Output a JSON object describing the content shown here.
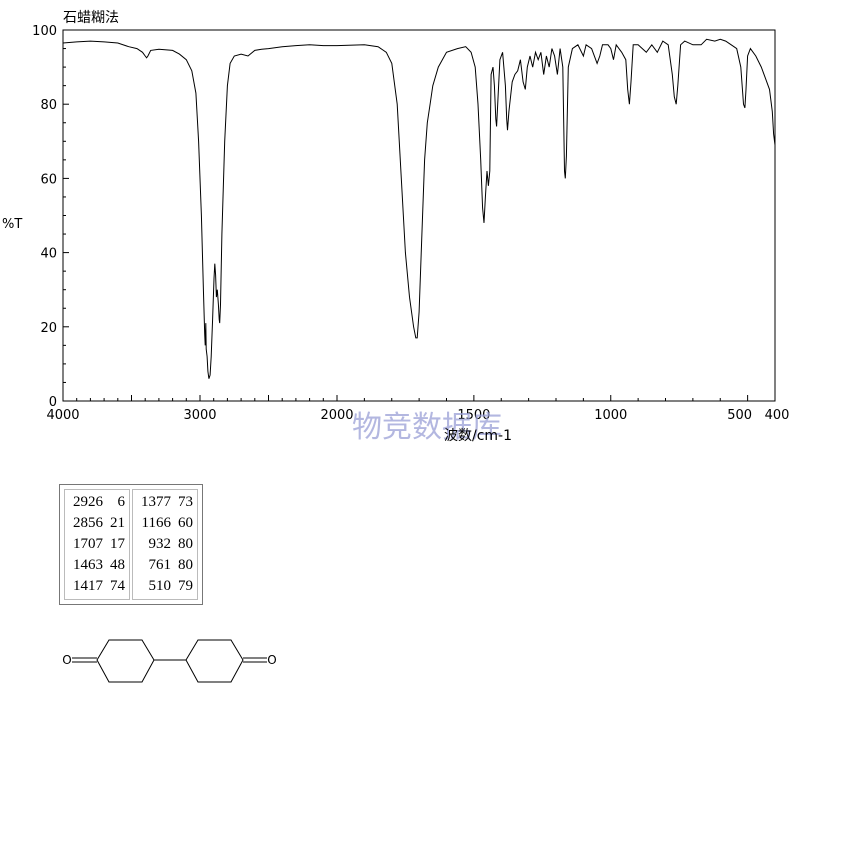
{
  "header": {
    "method_label": "石蜡糊法"
  },
  "watermark": "物竞数据库",
  "chart_data": {
    "type": "line",
    "title": "",
    "xlabel": "波数/cm-1",
    "ylabel": "%T",
    "xlim": [
      4000,
      400
    ],
    "ylim": [
      0,
      100
    ],
    "x_reversed": true,
    "x_ticks": [
      4000,
      3000,
      2000,
      1500,
      1000,
      500,
      400
    ],
    "y_ticks": [
      0,
      20,
      40,
      60,
      80,
      100
    ],
    "grid": false,
    "series": [
      {
        "points": [
          [
            4000,
            96.5
          ],
          [
            3900,
            96.8
          ],
          [
            3800,
            97
          ],
          [
            3700,
            96.8
          ],
          [
            3600,
            96.5
          ],
          [
            3520,
            95.5
          ],
          [
            3460,
            95
          ],
          [
            3420,
            94
          ],
          [
            3400,
            93
          ],
          [
            3390,
            92.5
          ],
          [
            3380,
            93
          ],
          [
            3360,
            94.5
          ],
          [
            3300,
            94.8
          ],
          [
            3200,
            94.5
          ],
          [
            3150,
            93.5
          ],
          [
            3100,
            92
          ],
          [
            3060,
            89
          ],
          [
            3030,
            83
          ],
          [
            3010,
            70
          ],
          [
            2990,
            50
          ],
          [
            2975,
            30
          ],
          [
            2966,
            18
          ],
          [
            2962,
            15
          ],
          [
            2958,
            21
          ],
          [
            2955,
            14
          ],
          [
            2948,
            12
          ],
          [
            2942,
            8
          ],
          [
            2935,
            6
          ],
          [
            2926,
            7
          ],
          [
            2918,
            12
          ],
          [
            2908,
            22
          ],
          [
            2898,
            33
          ],
          [
            2892,
            37
          ],
          [
            2886,
            34
          ],
          [
            2880,
            28
          ],
          [
            2874,
            30
          ],
          [
            2866,
            26
          ],
          [
            2860,
            22
          ],
          [
            2856,
            21
          ],
          [
            2850,
            26
          ],
          [
            2840,
            45
          ],
          [
            2820,
            70
          ],
          [
            2800,
            85
          ],
          [
            2780,
            91
          ],
          [
            2750,
            93
          ],
          [
            2700,
            93.5
          ],
          [
            2650,
            93
          ],
          [
            2600,
            94.5
          ],
          [
            2550,
            94.8
          ],
          [
            2500,
            95
          ],
          [
            2400,
            95.5
          ],
          [
            2300,
            95.8
          ],
          [
            2200,
            96
          ],
          [
            2100,
            95.8
          ],
          [
            2000,
            95.8
          ],
          [
            1900,
            96
          ],
          [
            1850,
            95.5
          ],
          [
            1820,
            94
          ],
          [
            1800,
            91
          ],
          [
            1780,
            80
          ],
          [
            1765,
            60
          ],
          [
            1750,
            40
          ],
          [
            1735,
            28
          ],
          [
            1720,
            20
          ],
          [
            1712,
            17
          ],
          [
            1707,
            17
          ],
          [
            1700,
            24
          ],
          [
            1690,
            45
          ],
          [
            1680,
            65
          ],
          [
            1670,
            75
          ],
          [
            1660,
            80
          ],
          [
            1650,
            85
          ],
          [
            1630,
            90
          ],
          [
            1600,
            94
          ],
          [
            1560,
            95
          ],
          [
            1530,
            95.5
          ],
          [
            1510,
            94
          ],
          [
            1495,
            90
          ],
          [
            1485,
            80
          ],
          [
            1475,
            65
          ],
          [
            1468,
            52
          ],
          [
            1463,
            48
          ],
          [
            1458,
            55
          ],
          [
            1452,
            62
          ],
          [
            1447,
            58
          ],
          [
            1442,
            62
          ],
          [
            1437,
            88
          ],
          [
            1430,
            90
          ],
          [
            1425,
            85
          ],
          [
            1420,
            76
          ],
          [
            1417,
            74
          ],
          [
            1413,
            80
          ],
          [
            1405,
            92
          ],
          [
            1395,
            94
          ],
          [
            1385,
            85
          ],
          [
            1380,
            76
          ],
          [
            1377,
            73
          ],
          [
            1372,
            78
          ],
          [
            1360,
            86
          ],
          [
            1350,
            88
          ],
          [
            1340,
            89
          ],
          [
            1330,
            92
          ],
          [
            1320,
            86
          ],
          [
            1312,
            84
          ],
          [
            1305,
            90
          ],
          [
            1295,
            93
          ],
          [
            1285,
            90
          ],
          [
            1275,
            94
          ],
          [
            1265,
            92
          ],
          [
            1255,
            94
          ],
          [
            1245,
            88
          ],
          [
            1235,
            93
          ],
          [
            1225,
            90
          ],
          [
            1215,
            95
          ],
          [
            1205,
            93
          ],
          [
            1195,
            88
          ],
          [
            1185,
            95
          ],
          [
            1175,
            90
          ],
          [
            1169,
            62
          ],
          [
            1166,
            60
          ],
          [
            1162,
            66
          ],
          [
            1155,
            90
          ],
          [
            1140,
            95
          ],
          [
            1120,
            96
          ],
          [
            1100,
            93
          ],
          [
            1090,
            96
          ],
          [
            1070,
            95
          ],
          [
            1050,
            91
          ],
          [
            1040,
            93
          ],
          [
            1030,
            96
          ],
          [
            1010,
            96
          ],
          [
            1000,
            95
          ],
          [
            990,
            92
          ],
          [
            980,
            96
          ],
          [
            960,
            94
          ],
          [
            945,
            92
          ],
          [
            938,
            84
          ],
          [
            932,
            80
          ],
          [
            926,
            86
          ],
          [
            918,
            96
          ],
          [
            900,
            96
          ],
          [
            870,
            94
          ],
          [
            850,
            96
          ],
          [
            830,
            94
          ],
          [
            810,
            97
          ],
          [
            790,
            96
          ],
          [
            775,
            88
          ],
          [
            768,
            82
          ],
          [
            761,
            80
          ],
          [
            755,
            85
          ],
          [
            745,
            96
          ],
          [
            730,
            97
          ],
          [
            700,
            96
          ],
          [
            670,
            96
          ],
          [
            650,
            97.5
          ],
          [
            620,
            97
          ],
          [
            600,
            97.5
          ],
          [
            580,
            97
          ],
          [
            560,
            96
          ],
          [
            540,
            95
          ],
          [
            525,
            90
          ],
          [
            518,
            83
          ],
          [
            515,
            80
          ],
          [
            510,
            79
          ],
          [
            506,
            84
          ],
          [
            500,
            93
          ],
          [
            490,
            95
          ],
          [
            470,
            93
          ],
          [
            450,
            90
          ],
          [
            435,
            87
          ],
          [
            420,
            84
          ],
          [
            410,
            78
          ],
          [
            405,
            72
          ],
          [
            400,
            69
          ]
        ]
      }
    ]
  },
  "peak_table": {
    "left": [
      {
        "wavenumber": "2926",
        "transmittance": "6"
      },
      {
        "wavenumber": "2856",
        "transmittance": "21"
      },
      {
        "wavenumber": "1707",
        "transmittance": "17"
      },
      {
        "wavenumber": "1463",
        "transmittance": "48"
      },
      {
        "wavenumber": "1417",
        "transmittance": "74"
      }
    ],
    "right": [
      {
        "wavenumber": "1377",
        "transmittance": "73"
      },
      {
        "wavenumber": "1166",
        "transmittance": "60"
      },
      {
        "wavenumber": "932",
        "transmittance": "80"
      },
      {
        "wavenumber": "761",
        "transmittance": "80"
      },
      {
        "wavenumber": "510",
        "transmittance": "79"
      }
    ]
  },
  "structure": {
    "atom_labels": [
      "O",
      "O"
    ]
  }
}
